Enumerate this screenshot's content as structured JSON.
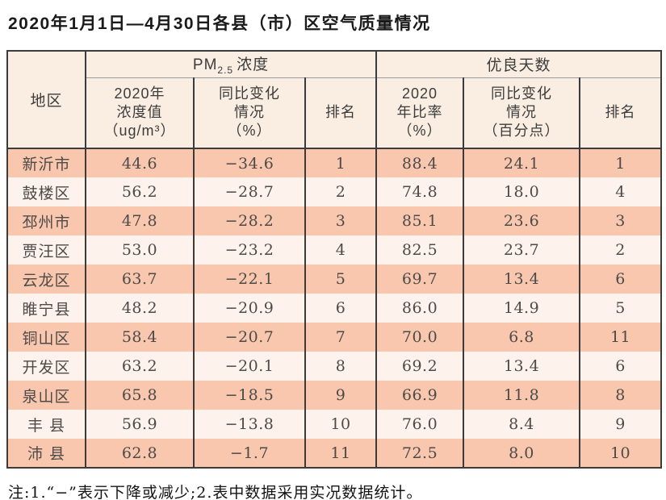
{
  "page": {
    "title": "2020年1月1日—4月30日各县（市）区空气质量情况",
    "footnote": "注:1.“−”表示下降或减少;2.表中数据采用实况数据统计。"
  },
  "colors": {
    "row_odd": "#f8c7ae",
    "row_even": "#fdf2ec",
    "header_bg": "#faeee2",
    "border_dark": "#3b3b3b",
    "border_gray": "#9b9b9b"
  },
  "table": {
    "region_header": "地区",
    "group_pm": {
      "prefix": "PM",
      "sub": "2.5",
      "suffix": "浓度"
    },
    "group_days": {
      "label": "优良天数"
    },
    "sub_headers": [
      "2020年\n浓度值\n（ug/m³）",
      "同比变化\n情况\n（%）",
      "排名",
      "2020\n年比率\n（%）",
      "同比变化\n情况\n（百分点）",
      "排名"
    ],
    "rows": [
      {
        "cells": [
          "新沂市",
          "44.6",
          "−34.6",
          "1",
          "88.4",
          "24.1",
          "1"
        ]
      },
      {
        "cells": [
          "鼓楼区",
          "56.2",
          "−28.7",
          "2",
          "74.8",
          "18.0",
          "4"
        ]
      },
      {
        "cells": [
          "邳州市",
          "47.8",
          "−28.2",
          "3",
          "85.1",
          "23.6",
          "3"
        ]
      },
      {
        "cells": [
          "贾汪区",
          "53.0",
          "−23.2",
          "4",
          "82.5",
          "23.7",
          "2"
        ]
      },
      {
        "cells": [
          "云龙区",
          "63.7",
          "−22.1",
          "5",
          "69.7",
          "13.4",
          "6"
        ]
      },
      {
        "cells": [
          "睢宁县",
          "48.2",
          "−20.9",
          "6",
          "86.0",
          "14.9",
          "5"
        ]
      },
      {
        "cells": [
          "铜山区",
          "58.4",
          "−20.7",
          "7",
          "70.0",
          "6.8",
          "11"
        ]
      },
      {
        "cells": [
          "开发区",
          "63.2",
          "−20.1",
          "8",
          "69.2",
          "13.4",
          "6"
        ]
      },
      {
        "cells": [
          "泉山区",
          "65.8",
          "−18.5",
          "9",
          "66.9",
          "11.8",
          "8"
        ]
      },
      {
        "cells": [
          "丰 县",
          "56.9",
          "−13.8",
          "10",
          "76.0",
          "8.4",
          "9"
        ]
      },
      {
        "cells": [
          "沛 县",
          "62.8",
          "−1.7",
          "11",
          "72.5",
          "8.0",
          "10"
        ]
      }
    ]
  }
}
